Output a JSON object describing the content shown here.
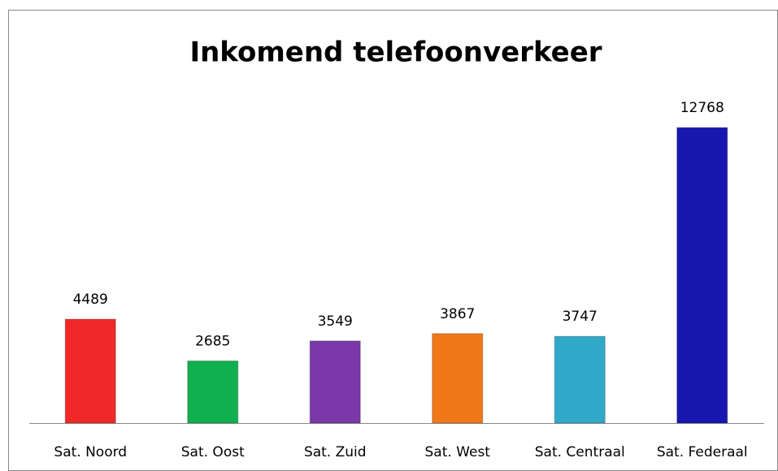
{
  "chart_data": {
    "type": "bar",
    "title": "Inkomend telefoonverkeer",
    "categories": [
      "Sat. Noord",
      "Sat. Oost",
      "Sat. Zuid",
      "Sat. West",
      "Sat. Centraal",
      "Sat. Federaal"
    ],
    "values": [
      4489,
      2685,
      3549,
      3867,
      3747,
      12768
    ],
    "colors": [
      "#f02828",
      "#10b050",
      "#7a38a8",
      "#f07818",
      "#30a8c8",
      "#1818b0"
    ],
    "ylim": [
      0,
      14000
    ]
  }
}
